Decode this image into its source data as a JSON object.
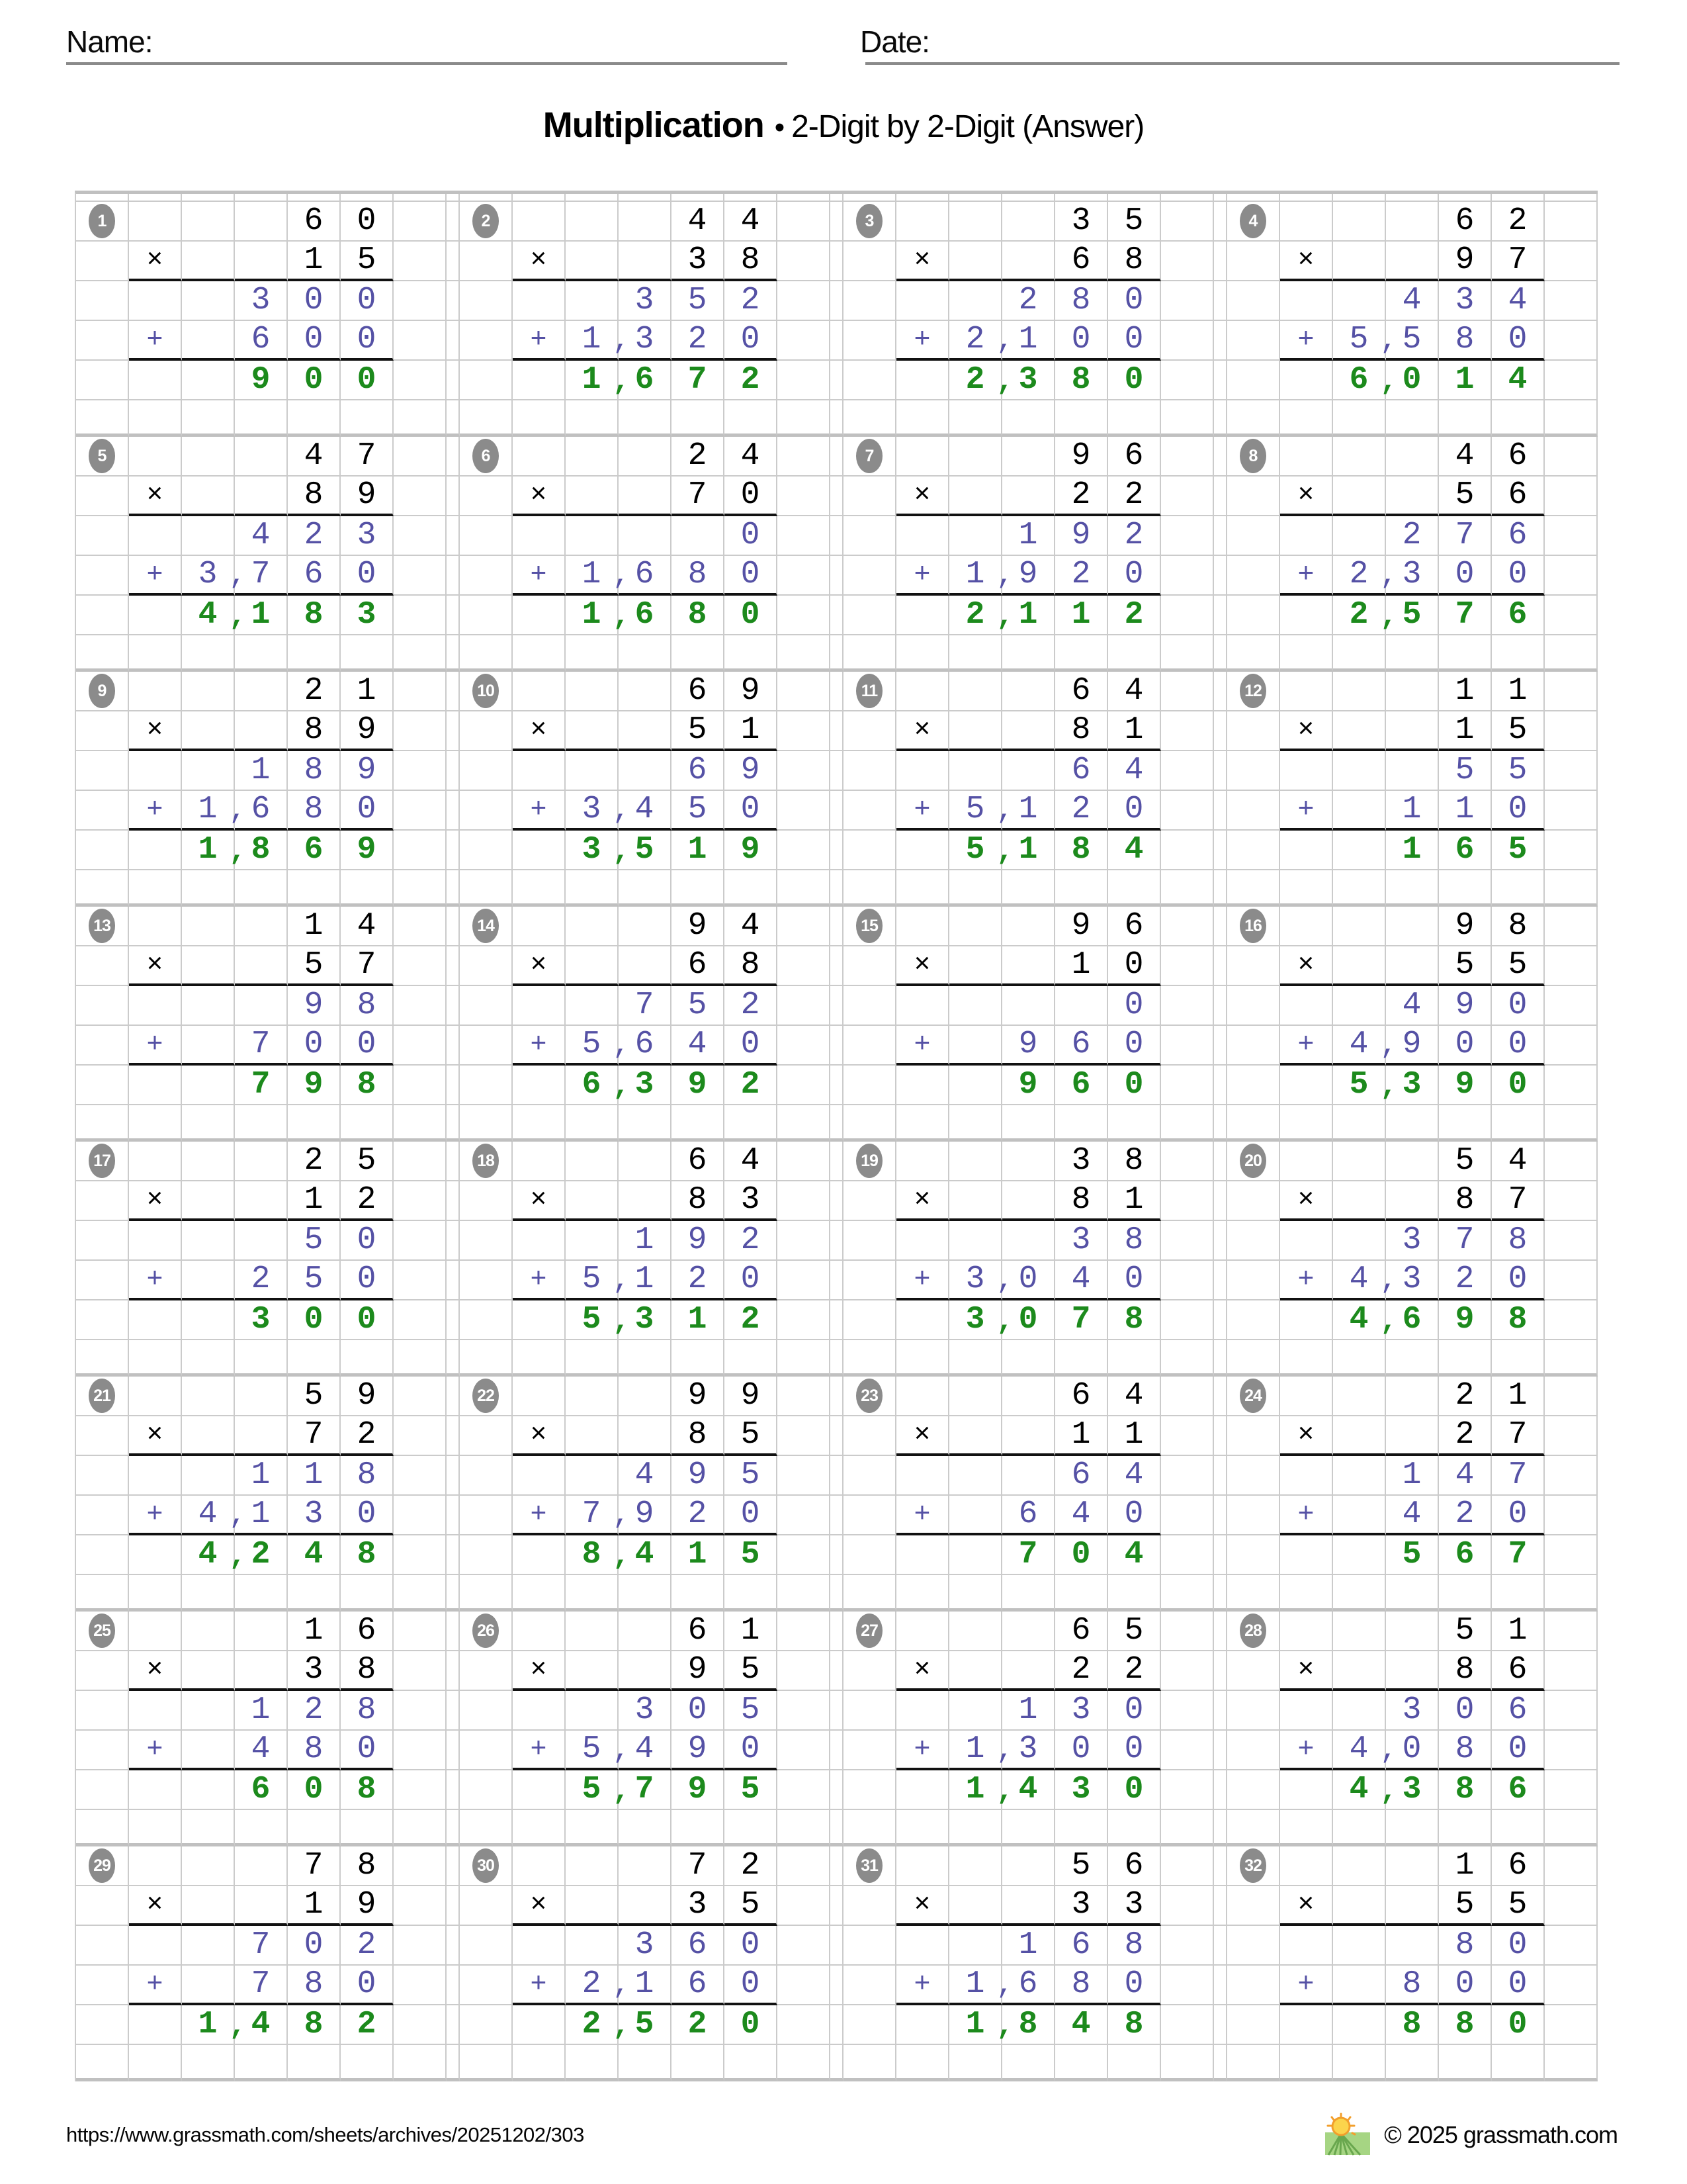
{
  "header": {
    "name_label": "Name:",
    "date_label": "Date:",
    "title_main": "Multiplication",
    "title_sep": "•",
    "title_sub": "2-Digit by 2-Digit (Answer)"
  },
  "footer": {
    "url": "https://www.grassmath.com/sheets/archives/20251202/303",
    "copyright": "© 2025 grassmath.com",
    "logo_icon": "sun-over-grass-logo"
  },
  "colors": {
    "partial_product": "#5551a5",
    "answer_green": "#1c8a1c",
    "problem_digits": "#000000",
    "grid_line": "#cbcbcb",
    "grid_line_thick": "#c0c0c0",
    "rule_line": "#111111",
    "badge_gray": "#8b8b8b",
    "logo_grass": "#a6d583",
    "logo_sun": "#fbd44c",
    "logo_sun_ring": "#f29f2c",
    "logo_furrow": "#69a74e"
  },
  "problems": [
    {
      "num": "1",
      "multiplicand": "60",
      "multiplier": "15",
      "partial1": "300",
      "partial2": "600",
      "product": "900"
    },
    {
      "num": "2",
      "multiplicand": "44",
      "multiplier": "38",
      "partial1": "352",
      "partial2": "1,320",
      "product": "1,672"
    },
    {
      "num": "3",
      "multiplicand": "35",
      "multiplier": "68",
      "partial1": "280",
      "partial2": "2,100",
      "product": "2,380"
    },
    {
      "num": "4",
      "multiplicand": "62",
      "multiplier": "97",
      "partial1": "434",
      "partial2": "5,580",
      "product": "6,014"
    },
    {
      "num": "5",
      "multiplicand": "47",
      "multiplier": "89",
      "partial1": "423",
      "partial2": "3,760",
      "product": "4,183"
    },
    {
      "num": "6",
      "multiplicand": "24",
      "multiplier": "70",
      "partial1": "0",
      "partial2": "1,680",
      "product": "1,680"
    },
    {
      "num": "7",
      "multiplicand": "96",
      "multiplier": "22",
      "partial1": "192",
      "partial2": "1,920",
      "product": "2,112"
    },
    {
      "num": "8",
      "multiplicand": "46",
      "multiplier": "56",
      "partial1": "276",
      "partial2": "2,300",
      "product": "2,576"
    },
    {
      "num": "9",
      "multiplicand": "21",
      "multiplier": "89",
      "partial1": "189",
      "partial2": "1,680",
      "product": "1,869"
    },
    {
      "num": "10",
      "multiplicand": "69",
      "multiplier": "51",
      "partial1": "69",
      "partial2": "3,450",
      "product": "3,519"
    },
    {
      "num": "11",
      "multiplicand": "64",
      "multiplier": "81",
      "partial1": "64",
      "partial2": "5,120",
      "product": "5,184"
    },
    {
      "num": "12",
      "multiplicand": "11",
      "multiplier": "15",
      "partial1": "55",
      "partial2": "110",
      "product": "165"
    },
    {
      "num": "13",
      "multiplicand": "14",
      "multiplier": "57",
      "partial1": "98",
      "partial2": "700",
      "product": "798"
    },
    {
      "num": "14",
      "multiplicand": "94",
      "multiplier": "68",
      "partial1": "752",
      "partial2": "5,640",
      "product": "6,392"
    },
    {
      "num": "15",
      "multiplicand": "96",
      "multiplier": "10",
      "partial1": "0",
      "partial2": "960",
      "product": "960"
    },
    {
      "num": "16",
      "multiplicand": "98",
      "multiplier": "55",
      "partial1": "490",
      "partial2": "4,900",
      "product": "5,390"
    },
    {
      "num": "17",
      "multiplicand": "25",
      "multiplier": "12",
      "partial1": "50",
      "partial2": "250",
      "product": "300"
    },
    {
      "num": "18",
      "multiplicand": "64",
      "multiplier": "83",
      "partial1": "192",
      "partial2": "5,120",
      "product": "5,312"
    },
    {
      "num": "19",
      "multiplicand": "38",
      "multiplier": "81",
      "partial1": "38",
      "partial2": "3,040",
      "product": "3,078"
    },
    {
      "num": "20",
      "multiplicand": "54",
      "multiplier": "87",
      "partial1": "378",
      "partial2": "4,320",
      "product": "4,698"
    },
    {
      "num": "21",
      "multiplicand": "59",
      "multiplier": "72",
      "partial1": "118",
      "partial2": "4,130",
      "product": "4,248"
    },
    {
      "num": "22",
      "multiplicand": "99",
      "multiplier": "85",
      "partial1": "495",
      "partial2": "7,920",
      "product": "8,415"
    },
    {
      "num": "23",
      "multiplicand": "64",
      "multiplier": "11",
      "partial1": "64",
      "partial2": "640",
      "product": "704"
    },
    {
      "num": "24",
      "multiplicand": "21",
      "multiplier": "27",
      "partial1": "147",
      "partial2": "420",
      "product": "567"
    },
    {
      "num": "25",
      "multiplicand": "16",
      "multiplier": "38",
      "partial1": "128",
      "partial2": "480",
      "product": "608"
    },
    {
      "num": "26",
      "multiplicand": "61",
      "multiplier": "95",
      "partial1": "305",
      "partial2": "5,490",
      "product": "5,795"
    },
    {
      "num": "27",
      "multiplicand": "65",
      "multiplier": "22",
      "partial1": "130",
      "partial2": "1,300",
      "product": "1,430"
    },
    {
      "num": "28",
      "multiplicand": "51",
      "multiplier": "86",
      "partial1": "306",
      "partial2": "4,080",
      "product": "4,386"
    },
    {
      "num": "29",
      "multiplicand": "78",
      "multiplier": "19",
      "partial1": "702",
      "partial2": "780",
      "product": "1,482"
    },
    {
      "num": "30",
      "multiplicand": "72",
      "multiplier": "35",
      "partial1": "360",
      "partial2": "2,160",
      "product": "2,520"
    },
    {
      "num": "31",
      "multiplicand": "56",
      "multiplier": "33",
      "partial1": "168",
      "partial2": "1,680",
      "product": "1,848"
    },
    {
      "num": "32",
      "multiplicand": "16",
      "multiplier": "55",
      "partial1": "80",
      "partial2": "800",
      "product": "880"
    }
  ],
  "signs": {
    "multiply": "×",
    "add": "+"
  }
}
